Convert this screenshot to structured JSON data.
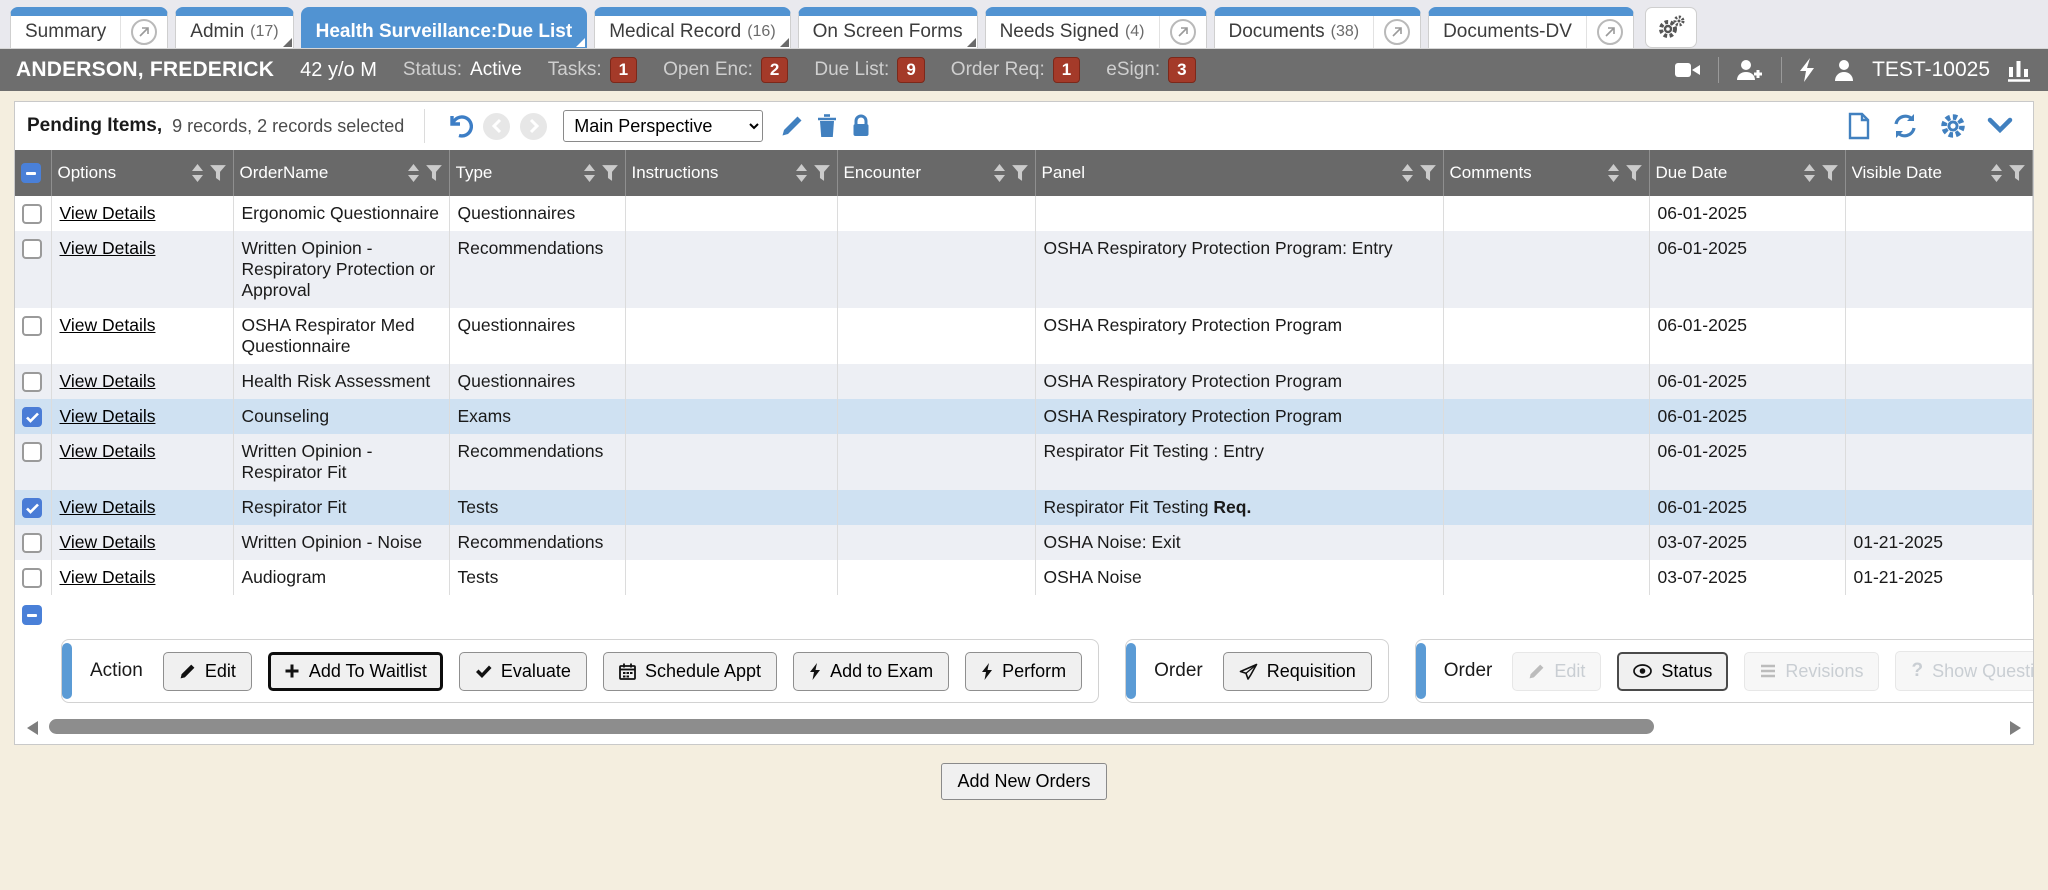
{
  "tabs": [
    {
      "label": "Summary",
      "count": "",
      "active": false
    },
    {
      "label": "Admin",
      "count": "(17)",
      "active": false
    },
    {
      "label": "Health Surveillance:Due List",
      "count": "",
      "active": true
    },
    {
      "label": "Medical Record",
      "count": "(16)",
      "active": false
    },
    {
      "label": "On Screen Forms",
      "count": "",
      "active": false
    },
    {
      "label": "Needs Signed",
      "count": "(4)",
      "active": false
    },
    {
      "label": "Documents",
      "count": "(38)",
      "active": false
    },
    {
      "label": "Documents-DV",
      "count": "",
      "active": false
    }
  ],
  "patient": {
    "name": "ANDERSON, FREDERICK",
    "age_sex": "42 y/o M",
    "status_label": "Status:",
    "status_value": "Active",
    "counters": [
      {
        "label": "Tasks:",
        "value": "1"
      },
      {
        "label": "Open Enc:",
        "value": "2"
      },
      {
        "label": "Due List:",
        "value": "9"
      },
      {
        "label": "Order Req:",
        "value": "1"
      },
      {
        "label": "eSign:",
        "value": "3"
      }
    ],
    "patient_id": "TEST-10025"
  },
  "toolbar": {
    "title": "Pending Items,",
    "subtitle": "9 records, 2 records selected",
    "perspective": "Main Perspective"
  },
  "table": {
    "columns": [
      {
        "key": "options",
        "label": "Options"
      },
      {
        "key": "order_name",
        "label": "OrderName"
      },
      {
        "key": "type",
        "label": "Type"
      },
      {
        "key": "instructions",
        "label": "Instructions"
      },
      {
        "key": "encounter",
        "label": "Encounter"
      },
      {
        "key": "panel",
        "label": "Panel"
      },
      {
        "key": "comments",
        "label": "Comments"
      },
      {
        "key": "due_date",
        "label": "Due Date"
      },
      {
        "key": "visible_date",
        "label": "Visible Date"
      }
    ],
    "rows": [
      {
        "checked": false,
        "selected": false,
        "options": "View Details",
        "order_name": "Ergonomic Questionnaire",
        "type": "Questionnaires",
        "instructions": "",
        "encounter": "",
        "panel": "",
        "panel_bold": "",
        "comments": "",
        "due_date": "06-01-2025",
        "visible_date": ""
      },
      {
        "checked": false,
        "selected": false,
        "options": "View Details",
        "order_name": "Written Opinion - Respiratory Protection or Approval",
        "type": "Recommendations",
        "instructions": "",
        "encounter": "",
        "panel": "OSHA Respiratory Protection Program: Entry",
        "panel_bold": "",
        "comments": "",
        "due_date": "06-01-2025",
        "visible_date": ""
      },
      {
        "checked": false,
        "selected": false,
        "options": "View Details",
        "order_name": "OSHA Respirator Med Questionnaire",
        "type": "Questionnaires",
        "instructions": "",
        "encounter": "",
        "panel": "OSHA Respiratory Protection Program",
        "panel_bold": "",
        "comments": "",
        "due_date": "06-01-2025",
        "visible_date": ""
      },
      {
        "checked": false,
        "selected": false,
        "options": "View Details",
        "order_name": "Health Risk Assessment",
        "type": "Questionnaires",
        "instructions": "",
        "encounter": "",
        "panel": "OSHA Respiratory Protection Program",
        "panel_bold": "",
        "comments": "",
        "due_date": "06-01-2025",
        "visible_date": ""
      },
      {
        "checked": true,
        "selected": true,
        "options": "View Details",
        "order_name": "Counseling",
        "type": "Exams",
        "instructions": "",
        "encounter": "",
        "panel": "OSHA Respiratory Protection Program",
        "panel_bold": "",
        "comments": "",
        "due_date": "06-01-2025",
        "visible_date": ""
      },
      {
        "checked": false,
        "selected": false,
        "options": "View Details",
        "order_name": "Written Opinion - Respirator Fit",
        "type": "Recommendations",
        "instructions": "",
        "encounter": "",
        "panel": "Respirator Fit Testing : Entry",
        "panel_bold": "",
        "comments": "",
        "due_date": "06-01-2025",
        "visible_date": ""
      },
      {
        "checked": true,
        "selected": true,
        "options": "View Details",
        "order_name": "Respirator Fit",
        "type": "Tests",
        "instructions": "",
        "encounter": "",
        "panel": "Respirator Fit Testing ",
        "panel_bold": "Req.",
        "comments": "",
        "due_date": "06-01-2025",
        "visible_date": ""
      },
      {
        "checked": false,
        "selected": false,
        "options": "View Details",
        "order_name": "Written Opinion - Noise",
        "type": "Recommendations",
        "instructions": "",
        "encounter": "",
        "panel": "OSHA Noise: Exit",
        "panel_bold": "",
        "comments": "",
        "due_date": "03-07-2025",
        "visible_date": "01-21-2025"
      },
      {
        "checked": false,
        "selected": false,
        "options": "View Details",
        "order_name": "Audiogram",
        "type": "Tests",
        "instructions": "",
        "encounter": "",
        "panel": "OSHA Noise",
        "panel_bold": "",
        "comments": "",
        "due_date": "03-07-2025",
        "visible_date": "01-21-2025"
      }
    ]
  },
  "actions": {
    "group1": {
      "label": "Action",
      "edit": "Edit",
      "add_to_waitlist": "Add To Waitlist",
      "evaluate": "Evaluate",
      "schedule_appt": "Schedule Appt",
      "add_to_exam": "Add to Exam",
      "perform": "Perform"
    },
    "group2": {
      "label": "Order",
      "requisition": "Requisition"
    },
    "group3": {
      "label": "Order",
      "edit": "Edit",
      "status": "Status",
      "revisions": "Revisions",
      "show_question": "Show Question"
    }
  },
  "bottom": {
    "add_new_orders": "Add New Orders"
  },
  "colors": {
    "tab_blue": "#5193d2",
    "patient_bar": "#6e6e6e",
    "badge_red": "#a43a29",
    "header_gray": "#696969",
    "selected_row": "#cfe1f2",
    "row_alt": "#edeff4",
    "accent_icon_blue": "#4180bf",
    "page_cream": "#f4eedf",
    "checkbox_blue": "#4a7cd6"
  }
}
